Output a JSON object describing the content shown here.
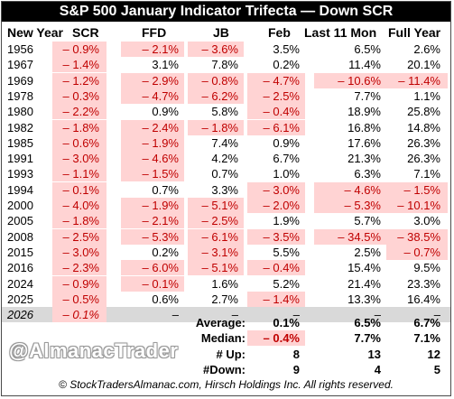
{
  "title": "S&P 500 January Indicator Trifecta — Down SCR",
  "headers": {
    "year": "New Year",
    "scr": "SCR",
    "ffd": "FFD",
    "jb": "JB",
    "feb": "Feb",
    "l11": "Last 11 Mon",
    "fy": "Full Year"
  },
  "rows": [
    {
      "year": "1956",
      "scr": "– 0.9%",
      "ffd": "– 2.1%",
      "jb": "– 3.6%",
      "feb": "3.5%",
      "l11": "6.5%",
      "fy": "2.6%"
    },
    {
      "year": "1967",
      "scr": "– 1.4%",
      "ffd": "3.1%",
      "jb": "7.8%",
      "feb": "0.2%",
      "l11": "11.4%",
      "fy": "20.1%"
    },
    {
      "year": "1969",
      "scr": "– 1.2%",
      "ffd": "– 2.9%",
      "jb": "– 0.8%",
      "feb": "– 4.7%",
      "l11": "– 10.6%",
      "fy": "– 11.4%"
    },
    {
      "year": "1978",
      "scr": "– 0.3%",
      "ffd": "– 4.7%",
      "jb": "– 6.2%",
      "feb": "– 2.5%",
      "l11": "7.7%",
      "fy": "1.1%"
    },
    {
      "year": "1980",
      "scr": "– 2.2%",
      "ffd": "0.9%",
      "jb": "5.8%",
      "feb": "– 0.4%",
      "l11": "18.9%",
      "fy": "25.8%"
    },
    {
      "year": "1982",
      "scr": "– 1.8%",
      "ffd": "– 2.4%",
      "jb": "– 1.8%",
      "feb": "– 6.1%",
      "l11": "16.8%",
      "fy": "14.8%"
    },
    {
      "year": "1985",
      "scr": "– 0.6%",
      "ffd": "– 1.9%",
      "jb": "7.4%",
      "feb": "0.9%",
      "l11": "17.6%",
      "fy": "26.3%"
    },
    {
      "year": "1991",
      "scr": "– 3.0%",
      "ffd": "– 4.6%",
      "jb": "4.2%",
      "feb": "6.7%",
      "l11": "21.3%",
      "fy": "26.3%"
    },
    {
      "year": "1993",
      "scr": "– 1.1%",
      "ffd": "– 1.5%",
      "jb": "0.7%",
      "feb": "1.0%",
      "l11": "6.3%",
      "fy": "7.1%"
    },
    {
      "year": "1994",
      "scr": "– 0.1%",
      "ffd": "0.7%",
      "jb": "3.3%",
      "feb": "– 3.0%",
      "l11": "– 4.6%",
      "fy": "– 1.5%"
    },
    {
      "year": "2000",
      "scr": "– 4.0%",
      "ffd": "– 1.9%",
      "jb": "– 5.1%",
      "feb": "– 2.0%",
      "l11": "– 5.3%",
      "fy": "– 10.1%"
    },
    {
      "year": "2005",
      "scr": "– 1.8%",
      "ffd": "– 2.1%",
      "jb": "– 2.5%",
      "feb": "1.9%",
      "l11": "5.7%",
      "fy": "3.0%"
    },
    {
      "year": "2008",
      "scr": "– 2.5%",
      "ffd": "– 5.3%",
      "jb": "– 6.1%",
      "feb": "– 3.5%",
      "l11": "– 34.5%",
      "fy": "– 38.5%"
    },
    {
      "year": "2015",
      "scr": "– 3.0%",
      "ffd": "0.2%",
      "jb": "– 3.1%",
      "feb": "5.5%",
      "l11": "2.5%",
      "fy": "– 0.7%"
    },
    {
      "year": "2016",
      "scr": "– 2.3%",
      "ffd": "– 6.0%",
      "jb": "– 5.1%",
      "feb": "– 0.4%",
      "l11": "15.4%",
      "fy": "9.5%"
    },
    {
      "year": "2024",
      "scr": "– 0.9%",
      "ffd": "– 0.1%",
      "jb": "1.6%",
      "feb": "5.2%",
      "l11": "21.4%",
      "fy": "23.3%"
    },
    {
      "year": "2025",
      "scr": "– 0.5%",
      "ffd": "0.6%",
      "jb": "2.7%",
      "feb": "– 1.4%",
      "l11": "13.3%",
      "fy": "16.4%"
    },
    {
      "year": "2026",
      "scr": "– 0.1%",
      "ffd": "–",
      "jb": "–",
      "feb": "–",
      "l11": "–",
      "fy": "–"
    }
  ],
  "stats": [
    {
      "label": "Average:",
      "feb": "0.1%",
      "l11": "6.5%",
      "fy": "6.7%"
    },
    {
      "label": "Median:",
      "feb": "– 0.4%",
      "l11": "7.7%",
      "fy": "7.1%"
    },
    {
      "label": "# Up:",
      "feb": "8",
      "l11": "13",
      "fy": "12"
    },
    {
      "label": "#Down:",
      "feb": "9",
      "l11": "4",
      "fy": "5"
    }
  ],
  "handle": "@AlmanacTrader",
  "footer": "© StockTradersAlmanac.com, Hirsch Holdings Inc. All rights reserved.",
  "colors": {
    "negative_text": "#c00000",
    "negative_bg": "#ffd3d3",
    "title_bg": "#000000",
    "current_row_bg": "#d9d9d9"
  }
}
